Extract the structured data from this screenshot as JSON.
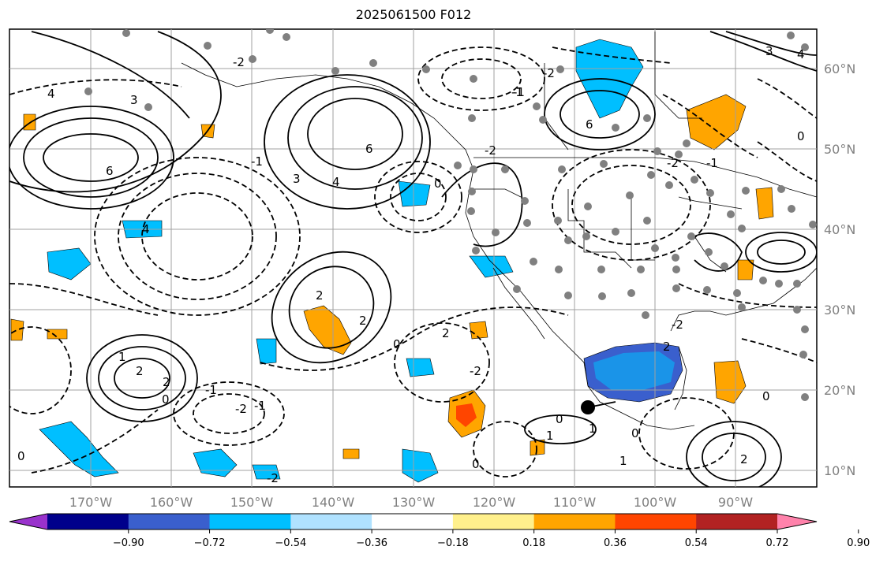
{
  "title": "2025061500 F012",
  "map": {
    "lon_labels": [
      "170°W",
      "160°W",
      "150°W",
      "140°W",
      "130°W",
      "120°W",
      "110°W",
      "100°W",
      "90°W"
    ],
    "lat_labels": [
      "60°N",
      "50°N",
      "40°N",
      "30°N",
      "20°N",
      "10°N"
    ],
    "contour_labels": [
      "4",
      "6",
      "3",
      "6",
      "4",
      "3",
      "6",
      "4",
      "2",
      "2",
      "-2",
      "-1",
      "2",
      "-2",
      "-1",
      "-2",
      "0",
      "-2",
      "2",
      "-2",
      "1",
      "2",
      "-1",
      "0",
      "0",
      "-2",
      "-1",
      "0",
      "1",
      "0",
      "1",
      "0",
      "-2",
      "1",
      "0",
      "-1",
      "2",
      "0",
      "-2",
      "0",
      "3",
      "4",
      "2",
      "-1"
    ],
    "storm_marker": "black-circle"
  },
  "colorbar": {
    "colors": [
      "#9932cc",
      "#00008b",
      "#3a5fcd",
      "#00bfff",
      "#b0e2ff",
      "#ffffff",
      "#fff08c",
      "#ffa500",
      "#ff4500",
      "#b22222",
      "#ff82ab"
    ],
    "tick_labels": [
      "−0.90",
      "−0.72",
      "−0.54",
      "−0.36",
      "−0.18",
      "0.18",
      "0.36",
      "0.54",
      "0.72",
      "0.90"
    ]
  }
}
